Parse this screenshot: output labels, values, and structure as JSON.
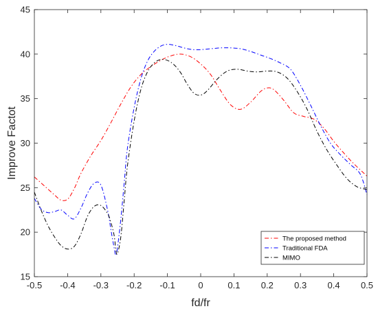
{
  "chart_data": {
    "type": "line",
    "title": "",
    "xlabel": "fd/fr",
    "ylabel": "Improve Factot",
    "xlim": [
      -0.5,
      0.5
    ],
    "ylim": [
      15,
      45
    ],
    "xticks": [
      -0.5,
      -0.4,
      -0.3,
      -0.2,
      -0.1,
      0,
      0.1,
      0.2,
      0.3,
      0.4,
      0.5
    ],
    "xtick_labels": [
      "-0.5",
      "-0.4",
      "-0.3",
      "-0.2",
      "-0.1",
      "0",
      "0.1",
      "0.2",
      "0.3",
      "0.4",
      "0.5"
    ],
    "yticks": [
      15,
      20,
      25,
      30,
      35,
      40,
      45
    ],
    "ytick_labels": [
      "15",
      "20",
      "25",
      "30",
      "35",
      "40",
      "45"
    ],
    "grid": false,
    "legend_position": "bottom-right",
    "series": [
      {
        "name": "The proposed method",
        "color": "#ff0000",
        "dash": "dash-dot",
        "x": [
          -0.5,
          -0.47,
          -0.44,
          -0.42,
          -0.4,
          -0.38,
          -0.36,
          -0.33,
          -0.3,
          -0.27,
          -0.24,
          -0.21,
          -0.18,
          -0.15,
          -0.12,
          -0.09,
          -0.06,
          -0.03,
          0,
          0.03,
          0.06,
          0.09,
          0.12,
          0.15,
          0.18,
          0.2,
          0.22,
          0.25,
          0.28,
          0.31,
          0.34,
          0.37,
          0.4,
          0.43,
          0.46,
          0.5
        ],
        "y": [
          26.2,
          25.2,
          24.2,
          23.6,
          23.7,
          24.9,
          26.6,
          28.6,
          30.3,
          32.3,
          34.4,
          36.3,
          37.7,
          38.6,
          39.3,
          39.8,
          40.0,
          39.7,
          38.9,
          37.7,
          35.9,
          34.3,
          33.8,
          34.6,
          35.8,
          36.2,
          36.0,
          34.8,
          33.4,
          33.0,
          32.7,
          31.7,
          30.2,
          28.9,
          27.7,
          26.3
        ]
      },
      {
        "name": "Traditional FDA",
        "color": "#0000ff",
        "dash": "dash-dot",
        "x": [
          -0.5,
          -0.48,
          -0.46,
          -0.44,
          -0.42,
          -0.4,
          -0.38,
          -0.36,
          -0.34,
          -0.32,
          -0.3,
          -0.28,
          -0.27,
          -0.26,
          -0.255,
          -0.25,
          -0.24,
          -0.23,
          -0.22,
          -0.2,
          -0.18,
          -0.16,
          -0.14,
          -0.12,
          -0.1,
          -0.08,
          -0.06,
          -0.04,
          -0.02,
          0,
          0.03,
          0.06,
          0.09,
          0.12,
          0.15,
          0.18,
          0.21,
          0.24,
          0.27,
          0.3,
          0.33,
          0.36,
          0.39,
          0.42,
          0.45,
          0.48,
          0.5
        ],
        "y": [
          23.8,
          22.6,
          22.2,
          22.3,
          22.5,
          21.9,
          21.5,
          22.7,
          24.4,
          25.5,
          25.3,
          22.5,
          20.3,
          18.2,
          17.4,
          18.3,
          21.5,
          25.5,
          29.5,
          34.0,
          37.2,
          39.2,
          40.3,
          40.9,
          41.1,
          41.0,
          40.8,
          40.6,
          40.5,
          40.5,
          40.6,
          40.7,
          40.7,
          40.6,
          40.3,
          39.9,
          39.5,
          39.0,
          38.3,
          36.5,
          34.3,
          32.0,
          30.0,
          28.7,
          27.6,
          26.5,
          24.2
        ]
      },
      {
        "name": "MIMO",
        "color": "#000000",
        "dash": "dash-dot",
        "x": [
          -0.5,
          -0.48,
          -0.46,
          -0.44,
          -0.42,
          -0.4,
          -0.38,
          -0.36,
          -0.34,
          -0.32,
          -0.3,
          -0.28,
          -0.27,
          -0.26,
          -0.255,
          -0.25,
          -0.24,
          -0.23,
          -0.22,
          -0.2,
          -0.18,
          -0.16,
          -0.14,
          -0.12,
          -0.1,
          -0.08,
          -0.06,
          -0.04,
          -0.02,
          0,
          0.02,
          0.05,
          0.08,
          0.11,
          0.14,
          0.17,
          0.2,
          0.23,
          0.26,
          0.29,
          0.32,
          0.35,
          0.38,
          0.41,
          0.44,
          0.47,
          0.5
        ],
        "y": [
          24.5,
          22.5,
          20.8,
          19.5,
          18.5,
          18.1,
          18.4,
          19.8,
          21.8,
          22.9,
          23.0,
          22.1,
          21.1,
          19.6,
          18.0,
          17.6,
          19.5,
          23.5,
          27.5,
          32.5,
          36.0,
          38.0,
          39.0,
          39.4,
          39.3,
          38.8,
          37.9,
          36.6,
          35.6,
          35.4,
          35.9,
          37.2,
          38.1,
          38.3,
          38.1,
          38.0,
          38.1,
          38.0,
          37.3,
          35.8,
          33.8,
          31.3,
          29.2,
          27.5,
          26.0,
          25.1,
          24.8
        ]
      }
    ]
  }
}
